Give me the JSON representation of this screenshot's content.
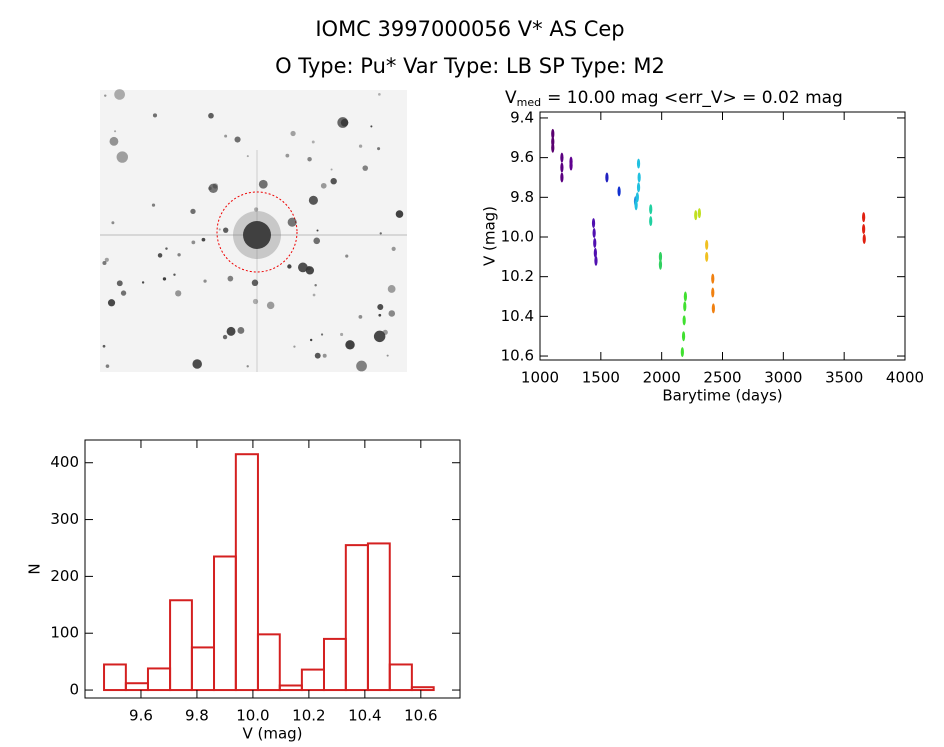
{
  "header": {
    "title": "IOMC 3997000056    V* AS Cep",
    "subtitle": "O Type: Pu*  Var Type: LB  SP Type: M2"
  },
  "chart_data": [
    {
      "type": "scatter",
      "title": "V",
      "title_sub": "med",
      "title_rest": "= 10.00 mag <err_V> = 0.02 mag",
      "x_label": "Barytime (days)",
      "y_label": "V (mag)",
      "xlim": [
        1000,
        4000
      ],
      "xticks": [
        1000,
        1500,
        2000,
        2500,
        3000,
        3500,
        4000
      ],
      "ylim": [
        10.62,
        9.37
      ],
      "yticks": [
        9.4,
        9.6,
        9.8,
        {
          "value": 10,
          "label": "10.0"
        },
        10.2,
        10.4,
        10.6
      ],
      "x": [
        1105,
        1105,
        1105,
        1180,
        1180,
        1180,
        1255,
        1255,
        1440,
        1445,
        1450,
        1455,
        1460,
        1550,
        1650,
        1785,
        1790,
        1800,
        1810,
        1815,
        1810,
        1910,
        1910,
        1990,
        1990,
        2170,
        2180,
        2185,
        2190,
        2195,
        2280,
        2310,
        2370,
        2370,
        2420,
        2420,
        2425,
        3660,
        3660,
        3665
      ],
      "values": [
        9.48,
        9.52,
        9.55,
        9.6,
        9.65,
        9.7,
        9.62,
        9.64,
        9.93,
        9.98,
        10.03,
        10.08,
        10.12,
        9.7,
        9.77,
        9.82,
        9.84,
        9.8,
        9.75,
        9.7,
        9.63,
        9.86,
        9.92,
        10.1,
        10.14,
        10.58,
        10.5,
        10.42,
        10.35,
        10.3,
        9.89,
        9.88,
        10.04,
        10.1,
        10.21,
        10.28,
        10.36,
        9.9,
        9.96,
        10.01
      ],
      "colors": [
        "#5a0070",
        "#5a0070",
        "#5a0070",
        "#5a0080",
        "#5a0080",
        "#5a0080",
        "#600090",
        "#600090",
        "#5010b0",
        "#5010b0",
        "#5010b0",
        "#5010b0",
        "#5010b0",
        "#2020c0",
        "#1030d0",
        "#2090e0",
        "#20c0e0",
        "#20c0e0",
        "#20c0e0",
        "#20c0e0",
        "#20c0e0",
        "#20d0a0",
        "#20d0a0",
        "#30d060",
        "#30d060",
        "#40e030",
        "#40e030",
        "#40e030",
        "#40e030",
        "#40e030",
        "#c0e020",
        "#c0e020",
        "#f0c020",
        "#f0c020",
        "#f08010",
        "#f08010",
        "#f08010",
        "#e02010",
        "#e02010",
        "#e02010"
      ]
    },
    {
      "type": "histogram",
      "x_label": "V (mag)",
      "y_label": "N",
      "color": "#d42020",
      "xlim": [
        9.4,
        10.74
      ],
      "xticks": [
        9.6,
        9.8,
        {
          "value": 10,
          "label": "10.0"
        },
        10.2,
        10.4,
        10.6
      ],
      "ylim": [
        -14,
        440
      ],
      "yticks": [
        0,
        100,
        200,
        300,
        400
      ],
      "bins": [
        9.468,
        9.546,
        9.625,
        9.704,
        9.782,
        9.861,
        9.939,
        10.018,
        10.096,
        10.175,
        10.254,
        10.332,
        10.411,
        10.489,
        10.568,
        10.646
      ],
      "counts": [
        45,
        12,
        38,
        158,
        75,
        235,
        415,
        98,
        8,
        36,
        90,
        255,
        258,
        45,
        5
      ]
    }
  ]
}
